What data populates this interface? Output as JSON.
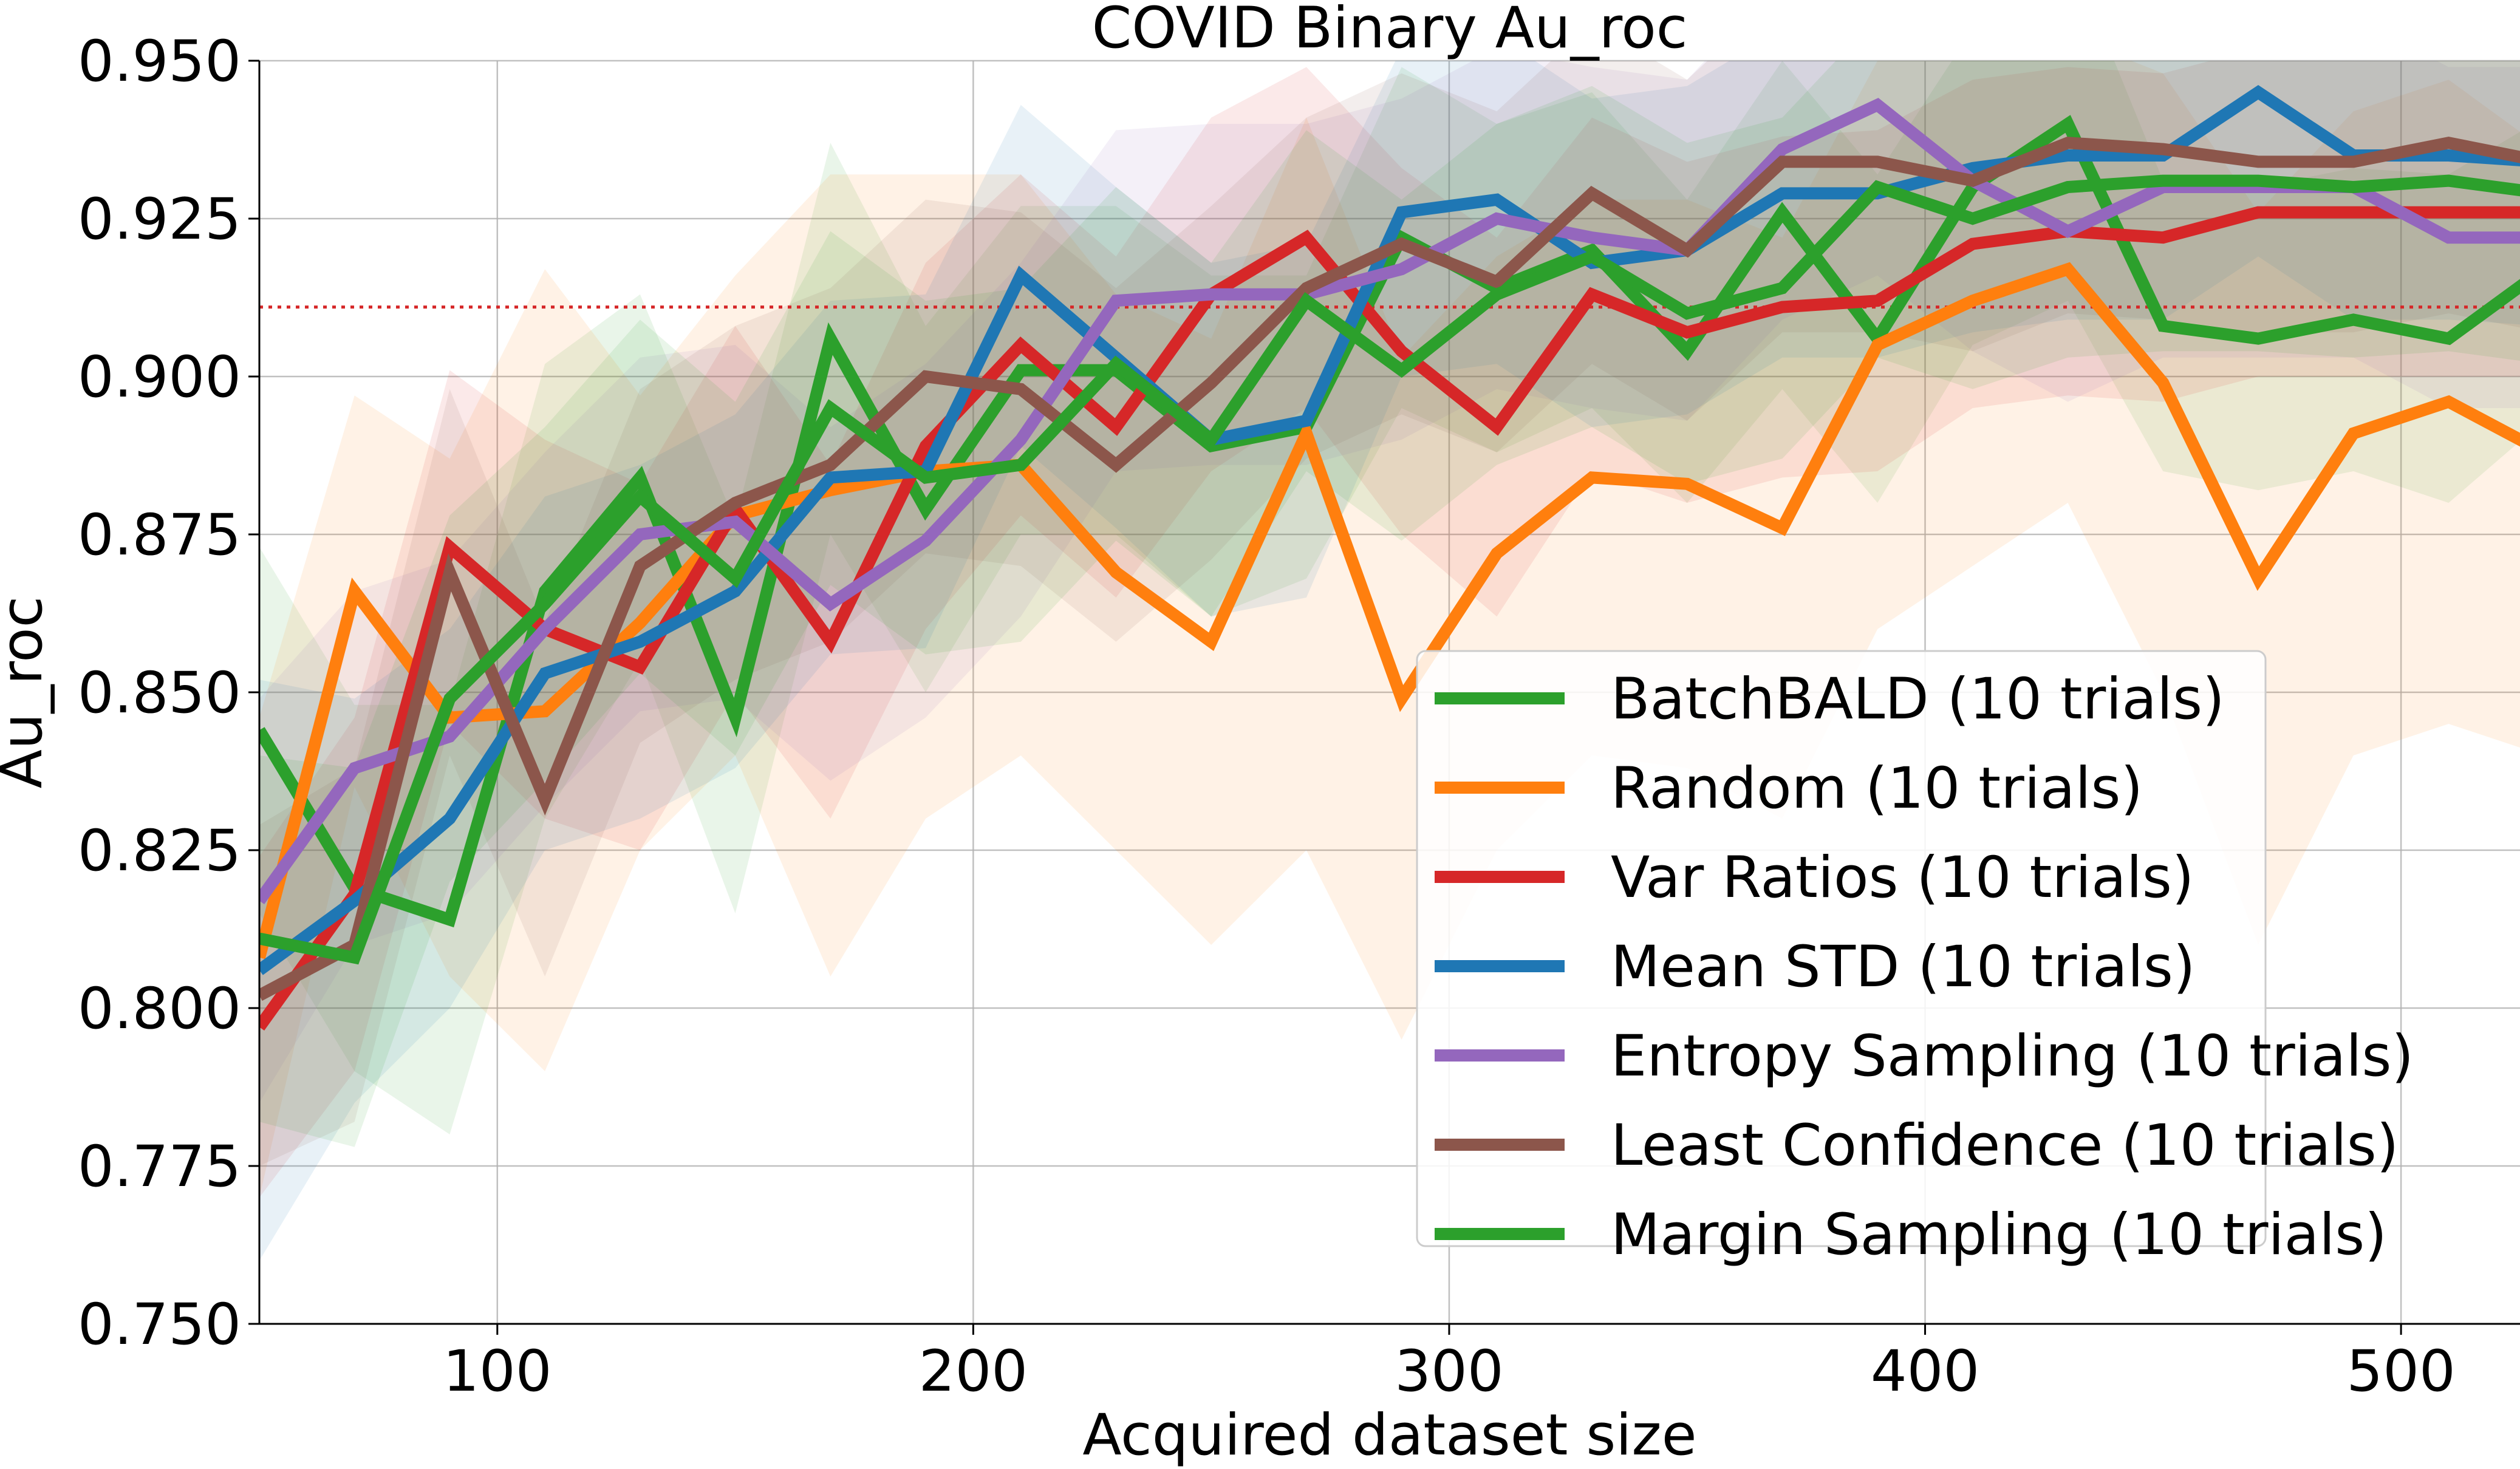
{
  "chart_data": {
    "type": "line",
    "title": "COVID Binary Au_roc",
    "xlabel": "Acquired dataset size",
    "ylabel": "Au_roc",
    "xlim": [
      50,
      525
    ],
    "ylim": [
      0.75,
      0.95
    ],
    "xticks": [
      "100",
      "200",
      "300",
      "400",
      "500"
    ],
    "xtick_values": [
      100,
      200,
      300,
      400,
      500
    ],
    "yticks": [
      "0.750",
      "0.775",
      "0.800",
      "0.825",
      "0.850",
      "0.875",
      "0.900",
      "0.925",
      "0.950"
    ],
    "ytick_values": [
      0.75,
      0.775,
      0.8,
      0.825,
      0.85,
      0.875,
      0.9,
      0.925,
      0.95
    ],
    "grid": true,
    "reference_line": {
      "y": 0.911,
      "color": "#d62728",
      "style": "dotted"
    },
    "legend_position": "lower-right",
    "x": [
      50,
      70,
      90,
      110,
      130,
      150,
      170,
      190,
      210,
      230,
      250,
      270,
      290,
      310,
      330,
      350,
      370,
      390,
      410,
      430,
      450,
      470,
      490,
      510,
      530
    ],
    "series": [
      {
        "name": "BatchBALD (10 trials)",
        "color": "#2ca02c",
        "values": [
          0.844,
          0.819,
          0.814,
          0.866,
          0.884,
          0.846,
          0.906,
          0.879,
          0.901,
          0.901,
          0.889,
          0.892,
          0.922,
          0.914,
          0.92,
          0.904,
          0.926,
          0.906,
          0.93,
          0.94,
          0.908,
          0.906,
          0.909,
          0.906,
          0.917
        ],
        "lower": [
          0.815,
          0.79,
          0.78,
          0.83,
          0.855,
          0.815,
          0.875,
          0.85,
          0.875,
          0.875,
          0.862,
          0.868,
          0.895,
          0.888,
          0.895,
          0.88,
          0.898,
          0.88,
          0.905,
          0.912,
          0.885,
          0.882,
          0.885,
          0.88,
          0.893
        ],
        "upper": [
          0.873,
          0.848,
          0.848,
          0.902,
          0.913,
          0.877,
          0.937,
          0.908,
          0.927,
          0.927,
          0.916,
          0.916,
          0.949,
          0.94,
          0.945,
          0.928,
          0.95,
          0.932,
          0.955,
          0.968,
          0.931,
          0.93,
          0.933,
          0.932,
          0.941
        ]
      },
      {
        "name": "Random (10 trials)",
        "color": "#ff7f0e",
        "values": [
          0.808,
          0.866,
          0.846,
          0.847,
          0.861,
          0.878,
          0.882,
          0.885,
          0.886,
          0.869,
          0.858,
          0.891,
          0.849,
          0.872,
          0.884,
          0.883,
          0.876,
          0.905,
          0.912,
          0.917,
          0.899,
          0.868,
          0.891,
          0.896,
          0.888
        ],
        "lower": [
          0.77,
          0.835,
          0.805,
          0.79,
          0.825,
          0.84,
          0.805,
          0.83,
          0.84,
          0.825,
          0.81,
          0.825,
          0.795,
          0.825,
          0.84,
          0.838,
          0.83,
          0.86,
          0.87,
          0.88,
          0.85,
          0.81,
          0.84,
          0.845,
          0.84
        ],
        "upper": [
          0.846,
          0.897,
          0.887,
          0.917,
          0.897,
          0.916,
          0.932,
          0.932,
          0.932,
          0.913,
          0.906,
          0.941,
          0.903,
          0.919,
          0.928,
          0.928,
          0.922,
          0.95,
          0.954,
          0.954,
          0.948,
          0.926,
          0.942,
          0.947,
          0.936
        ]
      },
      {
        "name": "Var Ratios (10 trials)",
        "color": "#d62728",
        "values": [
          0.797,
          0.818,
          0.873,
          0.86,
          0.854,
          0.879,
          0.858,
          0.889,
          0.905,
          0.892,
          0.913,
          0.922,
          0.904,
          0.892,
          0.913,
          0.907,
          0.911,
          0.912,
          0.921,
          0.923,
          0.922,
          0.926,
          0.926,
          0.926,
          0.926
        ],
        "lower": [
          0.77,
          0.79,
          0.845,
          0.83,
          0.825,
          0.85,
          0.83,
          0.86,
          0.878,
          0.865,
          0.885,
          0.895,
          0.875,
          0.862,
          0.885,
          0.88,
          0.884,
          0.885,
          0.895,
          0.897,
          0.896,
          0.9,
          0.9,
          0.9,
          0.9
        ],
        "upper": [
          0.824,
          0.846,
          0.901,
          0.89,
          0.883,
          0.908,
          0.886,
          0.918,
          0.932,
          0.919,
          0.941,
          0.949,
          0.933,
          0.922,
          0.941,
          0.934,
          0.938,
          0.939,
          0.947,
          0.949,
          0.948,
          0.952,
          0.952,
          0.952,
          0.952
        ]
      },
      {
        "name": "Mean STD (10 trials)",
        "color": "#1f77b4",
        "values": [
          0.806,
          0.817,
          0.83,
          0.853,
          0.858,
          0.866,
          0.884,
          0.885,
          0.916,
          0.903,
          0.89,
          0.893,
          0.926,
          0.928,
          0.918,
          0.92,
          0.929,
          0.929,
          0.933,
          0.935,
          0.935,
          0.945,
          0.935,
          0.935,
          0.934
        ],
        "lower": [
          0.76,
          0.785,
          0.8,
          0.825,
          0.83,
          0.838,
          0.856,
          0.857,
          0.889,
          0.876,
          0.862,
          0.865,
          0.9,
          0.902,
          0.892,
          0.894,
          0.903,
          0.903,
          0.907,
          0.909,
          0.909,
          0.919,
          0.909,
          0.909,
          0.908
        ],
        "upper": [
          0.852,
          0.849,
          0.86,
          0.881,
          0.886,
          0.894,
          0.912,
          0.913,
          0.943,
          0.93,
          0.918,
          0.921,
          0.952,
          0.954,
          0.944,
          0.946,
          0.955,
          0.955,
          0.959,
          0.961,
          0.961,
          0.971,
          0.961,
          0.961,
          0.96
        ]
      },
      {
        "name": "Entropy Sampling (10 trials)",
        "color": "#9467bd",
        "values": [
          0.817,
          0.838,
          0.843,
          0.86,
          0.875,
          0.877,
          0.864,
          0.874,
          0.89,
          0.912,
          0.913,
          0.913,
          0.917,
          0.925,
          0.922,
          0.92,
          0.936,
          0.943,
          0.931,
          0.923,
          0.93,
          0.93,
          0.93,
          0.922,
          0.922
        ],
        "lower": [
          0.785,
          0.81,
          0.815,
          0.832,
          0.847,
          0.849,
          0.836,
          0.846,
          0.862,
          0.885,
          0.886,
          0.886,
          0.89,
          0.898,
          0.895,
          0.893,
          0.909,
          0.916,
          0.904,
          0.896,
          0.903,
          0.903,
          0.903,
          0.895,
          0.895
        ],
        "upper": [
          0.849,
          0.866,
          0.871,
          0.888,
          0.903,
          0.905,
          0.892,
          0.902,
          0.918,
          0.939,
          0.94,
          0.94,
          0.944,
          0.952,
          0.949,
          0.947,
          0.963,
          0.97,
          0.958,
          0.95,
          0.957,
          0.957,
          0.957,
          0.949,
          0.949
        ]
      },
      {
        "name": "Least Confidence (10 trials)",
        "color": "#8c564b",
        "values": [
          0.802,
          0.81,
          0.869,
          0.833,
          0.87,
          0.88,
          0.886,
          0.9,
          0.898,
          0.886,
          0.899,
          0.914,
          0.921,
          0.915,
          0.929,
          0.92,
          0.934,
          0.934,
          0.931,
          0.937,
          0.936,
          0.934,
          0.934,
          0.937,
          0.934
        ],
        "lower": [
          0.775,
          0.782,
          0.84,
          0.805,
          0.842,
          0.852,
          0.858,
          0.872,
          0.87,
          0.858,
          0.871,
          0.887,
          0.894,
          0.888,
          0.902,
          0.893,
          0.907,
          0.907,
          0.904,
          0.91,
          0.909,
          0.907,
          0.907,
          0.91,
          0.907
        ],
        "upper": [
          0.829,
          0.838,
          0.898,
          0.861,
          0.898,
          0.908,
          0.914,
          0.928,
          0.926,
          0.914,
          0.927,
          0.941,
          0.948,
          0.942,
          0.956,
          0.947,
          0.961,
          0.961,
          0.958,
          0.964,
          0.963,
          0.961,
          0.961,
          0.964,
          0.961
        ]
      },
      {
        "name": "Margin Sampling (10 trials)",
        "color": "#2ca02c",
        "values": [
          0.811,
          0.808,
          0.849,
          0.864,
          0.881,
          0.868,
          0.895,
          0.884,
          0.886,
          0.902,
          0.89,
          0.912,
          0.901,
          0.913,
          0.919,
          0.91,
          0.914,
          0.93,
          0.925,
          0.93,
          0.931,
          0.931,
          0.93,
          0.931,
          0.929
        ],
        "lower": [
          0.782,
          0.778,
          0.82,
          0.836,
          0.853,
          0.84,
          0.867,
          0.856,
          0.858,
          0.874,
          0.862,
          0.885,
          0.874,
          0.886,
          0.892,
          0.883,
          0.887,
          0.903,
          0.898,
          0.903,
          0.904,
          0.904,
          0.903,
          0.904,
          0.902
        ],
        "upper": [
          0.84,
          0.838,
          0.878,
          0.892,
          0.909,
          0.896,
          0.923,
          0.912,
          0.914,
          0.93,
          0.918,
          0.939,
          0.928,
          0.94,
          0.946,
          0.937,
          0.941,
          0.957,
          0.952,
          0.957,
          0.958,
          0.958,
          0.957,
          0.958,
          0.956
        ]
      }
    ]
  }
}
